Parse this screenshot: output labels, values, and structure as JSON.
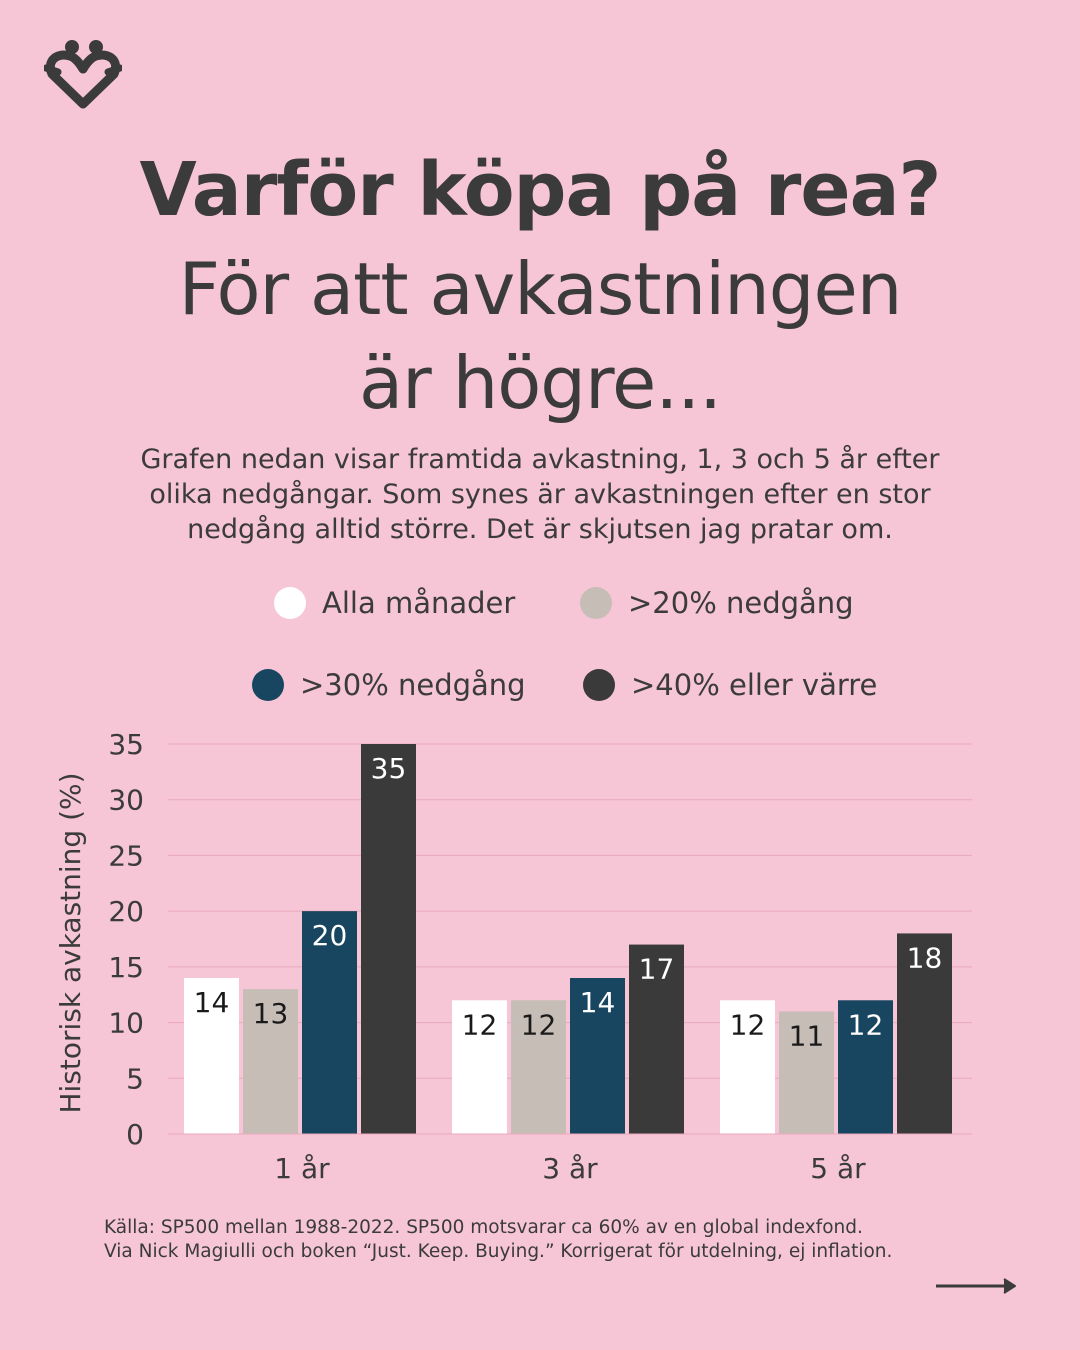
{
  "title": {
    "line1": "Varför köpa på rea?",
    "line2a": "För att avkastningen",
    "line2b": "är högre..."
  },
  "description": {
    "line1": "Grafen nedan visar framtida avkastning, 1, 3 och 5 år efter",
    "line2": "olika nedgångar. Som synes är avkastningen efter en stor",
    "line3": "nedgång alltid större. Det är skjutsen jag pratar om."
  },
  "colors": {
    "background": "#f7c6d6",
    "text": "#3b3b3b",
    "gridline": "#e8a8bb",
    "series": [
      "#ffffff",
      "#c6bdb6",
      "#184560",
      "#3a3a3a"
    ]
  },
  "legend": {
    "items": [
      {
        "label": "Alla månader",
        "color": "#ffffff"
      },
      {
        "label": ">20% nedgång",
        "color": "#c6bdb6"
      },
      {
        "label": ">30% nedgång",
        "color": "#184560"
      },
      {
        "label": ">40% eller värre",
        "color": "#3a3a3a"
      }
    ]
  },
  "chart_data": {
    "type": "bar",
    "categories": [
      "1 år",
      "3 år",
      "5 år"
    ],
    "series": [
      {
        "name": "Alla månader",
        "values": [
          14,
          12,
          12
        ],
        "labels": [
          "14",
          "12",
          "12"
        ],
        "color": "#ffffff",
        "label_color": "#1a1a1a"
      },
      {
        "name": ">20% nedgång",
        "values": [
          13,
          12,
          11
        ],
        "labels": [
          "13",
          "12",
          "11"
        ],
        "color": "#c6bdb6",
        "label_color": "#1a1a1a"
      },
      {
        "name": ">30% nedgång",
        "values": [
          20,
          14,
          12
        ],
        "labels": [
          "20",
          "14",
          "12"
        ],
        "color": "#184560",
        "label_color": "#ffffff"
      },
      {
        "name": ">40% eller värre",
        "values": [
          35,
          17,
          18
        ],
        "labels": [
          "35",
          "17",
          "18"
        ],
        "color": "#3a3a3a",
        "label_color": "#ffffff"
      }
    ],
    "ylabel": "Historisk avkastning (%)",
    "xlabel": "",
    "ylim": [
      0,
      35
    ],
    "yticks": [
      0,
      5,
      10,
      15,
      20,
      25,
      30,
      35
    ],
    "grid": true,
    "legend": "top"
  },
  "source": {
    "line1": "Källa: SP500 mellan 1988-2022. SP500 motsvarar ca 60% av en global indexfond.",
    "line2": "Via Nick Magiulli och boken “Just. Keep. Buying.” Korrigerat för utdelning, ej inflation."
  },
  "icons": {
    "logo": "heart-people-logo-icon",
    "next": "arrow-right-icon"
  }
}
